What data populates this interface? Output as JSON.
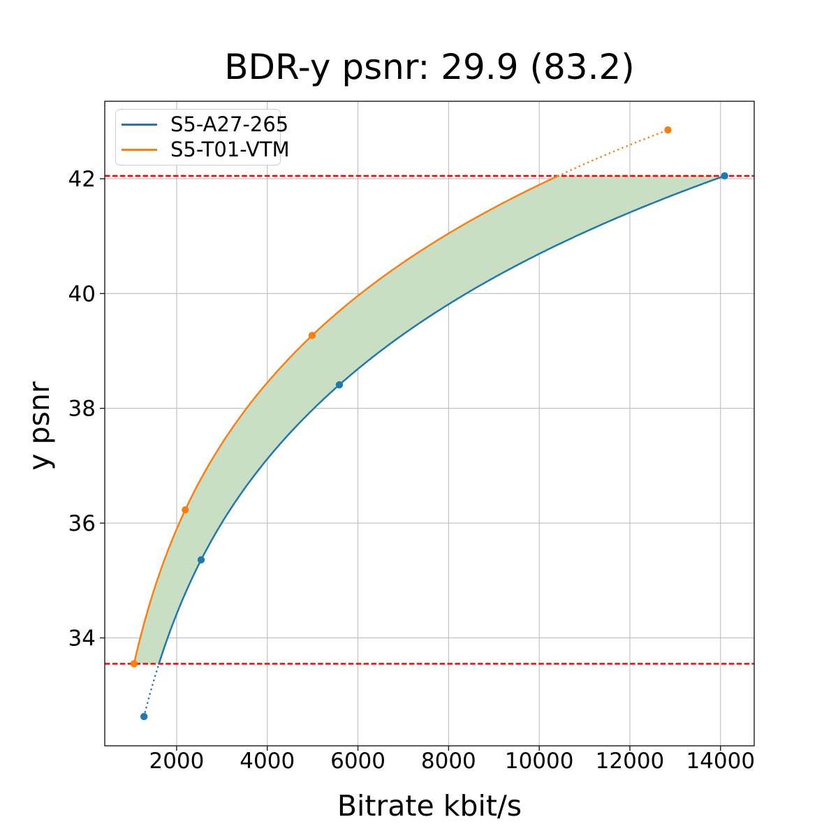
{
  "title": "BDR-y psnr: 29.9 (83.2)",
  "chart_data": {
    "type": "line",
    "title": "BDR-y psnr: 29.9 (83.2)",
    "xlabel": "Bitrate kbit/s",
    "ylabel": "y psnr",
    "xlim": [
      414,
      14743
    ],
    "ylim": [
      32.12,
      43.35
    ],
    "xticks": [
      2000,
      4000,
      6000,
      8000,
      10000,
      12000,
      14000
    ],
    "yticks": [
      34,
      36,
      38,
      40,
      42
    ],
    "grid": true,
    "grid_color": "#bdbdbd",
    "legend_position": "upper left",
    "series": [
      {
        "name": "S5-A27-265",
        "color": "#1f77b4",
        "x": [
          1280,
          2540,
          5590,
          14090
        ],
        "y": [
          32.63,
          35.36,
          38.41,
          42.05
        ]
      },
      {
        "name": "S5-T01-VTM",
        "color": "#ff7f0e",
        "x": [
          1060,
          2190,
          4990,
          12840
        ],
        "y": [
          33.55,
          36.23,
          39.27,
          42.85
        ]
      }
    ],
    "hlines": [
      {
        "y": 42.05,
        "color": "#ff0000",
        "style": "dashed"
      },
      {
        "y": 33.55,
        "color": "#ff0000",
        "style": "dashed"
      }
    ],
    "overlap": {
      "ymin": 33.55,
      "ymax": 42.05
    },
    "band_fill": "#c9dfc3",
    "interpolation": "pchip-log-x",
    "outside_overlap_linestyle": "dotted"
  }
}
